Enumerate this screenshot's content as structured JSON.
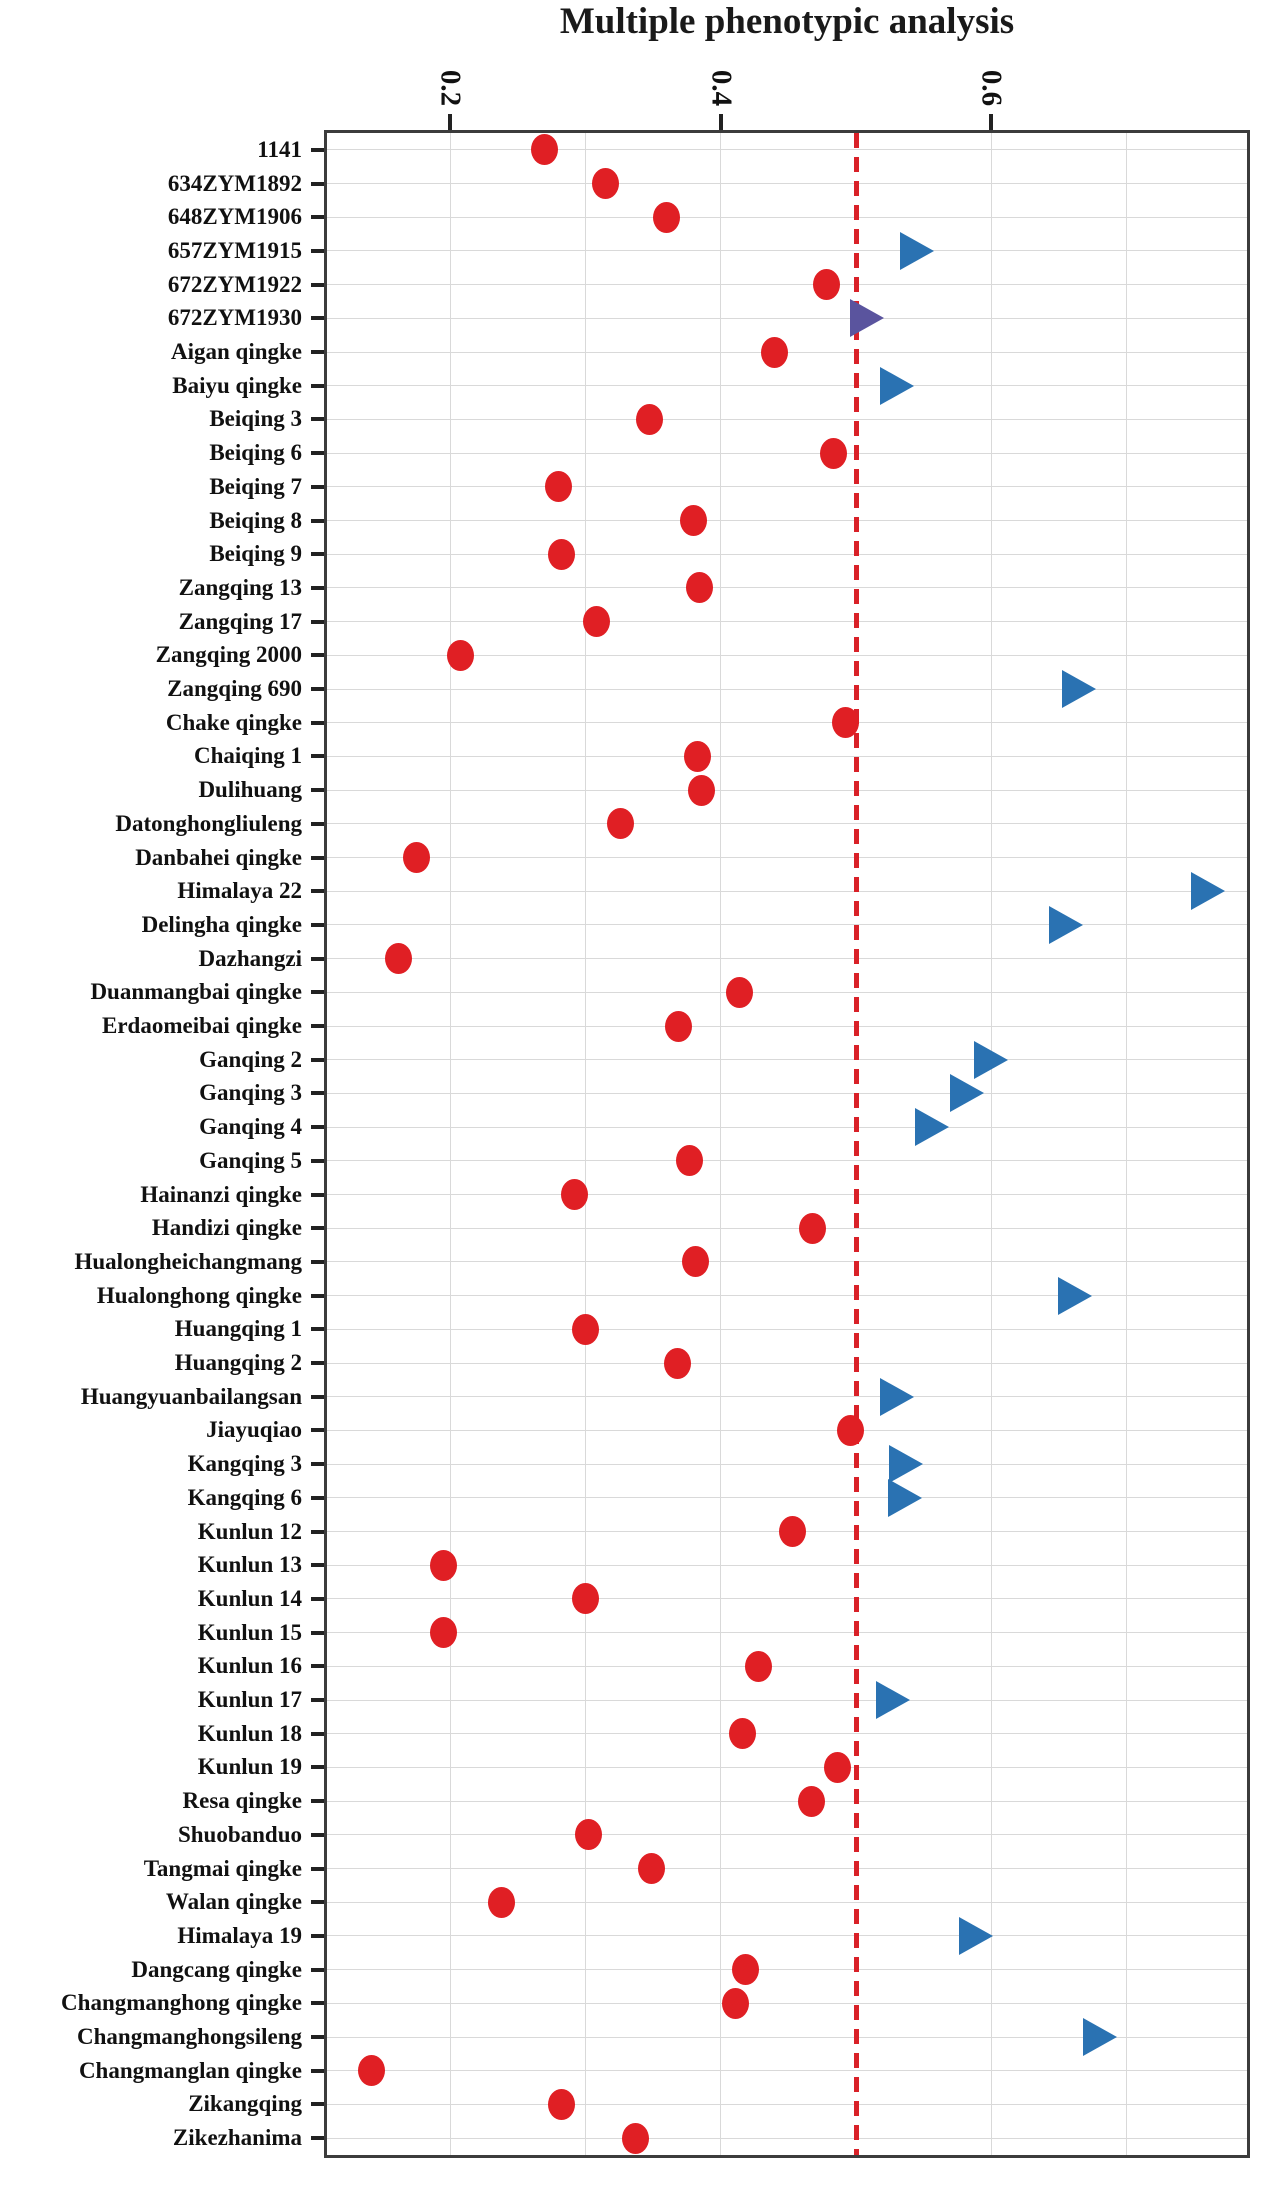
{
  "title": "Multiple phenotypic analysis",
  "colors": {
    "circle_red": "#e01f24",
    "triangle_blue": "#2a72b2",
    "triangle_purple": "#5a549e",
    "reference_line_red": "#d92128",
    "gridline_gray": "#d9d9d9",
    "axis_border": "#3c3c3c",
    "text": "#111111"
  },
  "chart_data": {
    "type": "scatter",
    "orientation": "horizontal-dot-plot",
    "title": "Multiple phenotypic analysis",
    "grid": "on",
    "legend_position": "none",
    "x_axis": {
      "position": "top",
      "min": 0.109,
      "max": 0.789,
      "ticks": [
        0.2,
        0.4,
        0.6
      ],
      "tick_labels": [
        "0.2",
        "0.4",
        "0.6"
      ],
      "tick_label_rotation_deg": 90,
      "gridline_values": [
        0.2,
        0.3,
        0.4,
        0.6,
        0.7
      ]
    },
    "reference_line": {
      "value": 0.5,
      "style": "dashed",
      "color": "#d92128"
    },
    "marker_legend": {
      "circle-red": "red filled circle",
      "triangle-blue": "blue right-pointing triangle",
      "triangle-purple": "purple right-pointing triangle"
    },
    "points": [
      {
        "label": "1141",
        "value": 0.27,
        "marker": "circle-red"
      },
      {
        "label": "634ZYM1892",
        "value": 0.315,
        "marker": "circle-red"
      },
      {
        "label": "648ZYM1906",
        "value": 0.36,
        "marker": "circle-red"
      },
      {
        "label": "657ZYM1915",
        "value": 0.545,
        "marker": "triangle-blue"
      },
      {
        "label": "672ZYM1922",
        "value": 0.478,
        "marker": "circle-red"
      },
      {
        "label": "672ZYM1930",
        "value": 0.508,
        "marker": "triangle-purple"
      },
      {
        "label": "Aigan qingke",
        "value": 0.44,
        "marker": "circle-red"
      },
      {
        "label": "Baiyu qingke",
        "value": 0.53,
        "marker": "triangle-blue"
      },
      {
        "label": "Beiqing 3",
        "value": 0.347,
        "marker": "circle-red"
      },
      {
        "label": "Beiqing 6",
        "value": 0.483,
        "marker": "circle-red"
      },
      {
        "label": "Beiqing 7",
        "value": 0.28,
        "marker": "circle-red"
      },
      {
        "label": "Beiqing 8",
        "value": 0.38,
        "marker": "circle-red"
      },
      {
        "label": "Beiqing 9",
        "value": 0.282,
        "marker": "circle-red"
      },
      {
        "label": "Zangqing 13",
        "value": 0.384,
        "marker": "circle-red"
      },
      {
        "label": "Zangqing 17",
        "value": 0.308,
        "marker": "circle-red"
      },
      {
        "label": "Zangqing 2000",
        "value": 0.208,
        "marker": "circle-red"
      },
      {
        "label": "Zangqing 690",
        "value": 0.665,
        "marker": "triangle-blue"
      },
      {
        "label": "Chake qingke",
        "value": 0.492,
        "marker": "circle-red"
      },
      {
        "label": "Chaiqing 1",
        "value": 0.383,
        "marker": "circle-red"
      },
      {
        "label": "Dulihuang",
        "value": 0.386,
        "marker": "circle-red"
      },
      {
        "label": "Datonghongliuleng",
        "value": 0.326,
        "marker": "circle-red"
      },
      {
        "label": "Danbahei qingke",
        "value": 0.175,
        "marker": "circle-red"
      },
      {
        "label": "Himalaya 22",
        "value": 0.76,
        "marker": "triangle-blue"
      },
      {
        "label": "Delingha qingke",
        "value": 0.655,
        "marker": "triangle-blue"
      },
      {
        "label": "Dazhangzi",
        "value": 0.162,
        "marker": "circle-red"
      },
      {
        "label": "Duanmangbai qingke",
        "value": 0.414,
        "marker": "circle-red"
      },
      {
        "label": "Erdaomeibai qingke",
        "value": 0.369,
        "marker": "circle-red"
      },
      {
        "label": "Ganqing 2",
        "value": 0.6,
        "marker": "triangle-blue"
      },
      {
        "label": "Ganqing 3",
        "value": 0.582,
        "marker": "triangle-blue"
      },
      {
        "label": "Ganqing 4",
        "value": 0.556,
        "marker": "triangle-blue"
      },
      {
        "label": "Ganqing 5",
        "value": 0.377,
        "marker": "circle-red"
      },
      {
        "label": "Hainanzi qingke",
        "value": 0.292,
        "marker": "circle-red"
      },
      {
        "label": "Handizi qingke",
        "value": 0.468,
        "marker": "circle-red"
      },
      {
        "label": "Hualongheichangmang",
        "value": 0.381,
        "marker": "circle-red"
      },
      {
        "label": "Hualonghong qingke",
        "value": 0.662,
        "marker": "triangle-blue"
      },
      {
        "label": "Huangqing 1",
        "value": 0.3,
        "marker": "circle-red"
      },
      {
        "label": "Huangqing 2",
        "value": 0.368,
        "marker": "circle-red"
      },
      {
        "label": "Huangyuanbailangsan",
        "value": 0.53,
        "marker": "triangle-blue"
      },
      {
        "label": "Jiayuqiao",
        "value": 0.496,
        "marker": "circle-red"
      },
      {
        "label": "Kangqing 3",
        "value": 0.537,
        "marker": "triangle-blue"
      },
      {
        "label": "Kangqing 6",
        "value": 0.536,
        "marker": "triangle-blue"
      },
      {
        "label": "Kunlun 12",
        "value": 0.453,
        "marker": "circle-red"
      },
      {
        "label": "Kunlun 13",
        "value": 0.195,
        "marker": "circle-red"
      },
      {
        "label": "Kunlun 14",
        "value": 0.3,
        "marker": "circle-red"
      },
      {
        "label": "Kunlun 15",
        "value": 0.195,
        "marker": "circle-red"
      },
      {
        "label": "Kunlun 16",
        "value": 0.428,
        "marker": "circle-red"
      },
      {
        "label": "Kunlun 17",
        "value": 0.527,
        "marker": "triangle-blue"
      },
      {
        "label": "Kunlun 18",
        "value": 0.416,
        "marker": "circle-red"
      },
      {
        "label": "Kunlun 19",
        "value": 0.486,
        "marker": "circle-red"
      },
      {
        "label": "Resa qingke",
        "value": 0.467,
        "marker": "circle-red"
      },
      {
        "label": "Shuobanduo",
        "value": 0.302,
        "marker": "circle-red"
      },
      {
        "label": "Tangmai qingke",
        "value": 0.349,
        "marker": "circle-red"
      },
      {
        "label": "Walan qingke",
        "value": 0.238,
        "marker": "circle-red"
      },
      {
        "label": "Himalaya 19",
        "value": 0.589,
        "marker": "triangle-blue"
      },
      {
        "label": "Dangcang qingke",
        "value": 0.418,
        "marker": "circle-red"
      },
      {
        "label": "Changmanghong qingke",
        "value": 0.411,
        "marker": "circle-red"
      },
      {
        "label": "Changmanghongsileng",
        "value": 0.68,
        "marker": "triangle-blue"
      },
      {
        "label": "Changmanglan qingke",
        "value": 0.142,
        "marker": "circle-red"
      },
      {
        "label": "Zikangqing",
        "value": 0.282,
        "marker": "circle-red"
      },
      {
        "label": "Zikezhanima",
        "value": 0.337,
        "marker": "circle-red"
      }
    ]
  }
}
